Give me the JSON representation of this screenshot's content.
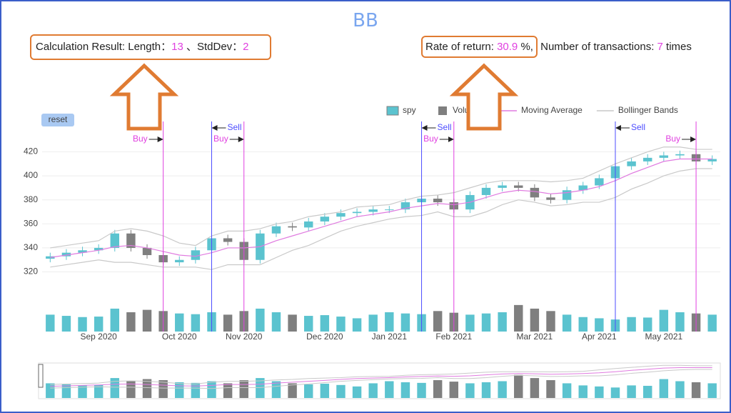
{
  "header": {
    "title": "BB",
    "calc": {
      "prefix": "Calculation Result: Length：",
      "length": 13,
      "sep": "、StdDev：",
      "stddev": 2
    },
    "rate": {
      "prefix": "Rate of return: ",
      "value": 30.9,
      "unit": "%,",
      "tx_prefix": "Number of transactions: ",
      "transactions": 7,
      "tx_unit": "times"
    }
  },
  "reset": "reset",
  "chart_data": {
    "type": "candlestick",
    "name": "spy",
    "up_color": "#5bc3cf",
    "down_color": "#7f7f7f",
    "categories": [
      null,
      null,
      null,
      "Sep 2020",
      null,
      null,
      null,
      null,
      "Oct 2020",
      null,
      null,
      null,
      "Nov 2020",
      null,
      null,
      null,
      null,
      "Dec 2020",
      null,
      null,
      null,
      "Jan 2021",
      null,
      null,
      null,
      "Feb 2021",
      null,
      null,
      null,
      null,
      "Mar 2021",
      null,
      null,
      null,
      "Apr 2021",
      null,
      null,
      null,
      "May 2021",
      null,
      null,
      null
    ],
    "open": [
      331,
      333,
      336,
      338,
      340,
      352,
      340,
      334,
      328,
      330,
      338,
      348,
      345,
      330,
      352,
      358,
      357,
      362,
      366,
      369,
      370,
      372,
      372,
      378,
      381,
      378,
      372,
      384,
      390,
      392,
      390,
      382,
      380,
      388,
      392,
      398,
      408,
      412,
      415,
      417,
      418,
      412
    ],
    "high": [
      336,
      339,
      341,
      343,
      355,
      355,
      343,
      337,
      333,
      341,
      351,
      351,
      348,
      355,
      361,
      361,
      365,
      369,
      372,
      373,
      375,
      375,
      381,
      384,
      384,
      381,
      387,
      393,
      395,
      395,
      393,
      385,
      391,
      395,
      401,
      411,
      415,
      418,
      420,
      421,
      421,
      417
    ],
    "low": [
      328,
      330,
      333,
      335,
      337,
      337,
      331,
      325,
      325,
      327,
      335,
      342,
      327,
      327,
      349,
      354,
      354,
      359,
      363,
      366,
      367,
      369,
      369,
      375,
      375,
      369,
      369,
      381,
      387,
      387,
      379,
      377,
      377,
      385,
      389,
      395,
      405,
      409,
      412,
      414,
      409,
      409
    ],
    "close": [
      333,
      336,
      338,
      340,
      352,
      340,
      334,
      328,
      330,
      338,
      348,
      345,
      330,
      352,
      358,
      357,
      362,
      366,
      369,
      370,
      372,
      372,
      378,
      381,
      378,
      372,
      384,
      390,
      392,
      390,
      382,
      380,
      388,
      392,
      398,
      408,
      412,
      415,
      417,
      418,
      412,
      414
    ],
    "volume": {
      "name": "Volume",
      "values": [
        70,
        65,
        60,
        62,
        95,
        80,
        90,
        85,
        75,
        72,
        80,
        70,
        85,
        95,
        80,
        70,
        65,
        68,
        62,
        55,
        70,
        80,
        75,
        72,
        85,
        78,
        70,
        75,
        80,
        110,
        95,
        85,
        70,
        60,
        55,
        50,
        60,
        58,
        90,
        80,
        75,
        70
      ],
      "ylim": [
        0,
        160
      ]
    },
    "lines": [
      {
        "name": "Moving Average",
        "color": "#e07be0",
        "values": [
          332,
          334,
          336,
          338,
          341,
          342,
          340,
          337,
          334,
          333,
          336,
          340,
          340,
          341,
          346,
          350,
          354,
          358,
          362,
          366,
          368,
          370,
          373,
          375,
          377,
          376,
          378,
          382,
          386,
          388,
          387,
          385,
          386,
          388,
          391,
          396,
          402,
          407,
          412,
          414,
          414,
          414
        ]
      },
      {
        "name": "Bollinger Bands",
        "color": "#c9c9c9",
        "upper": [
          340,
          342,
          344,
          346,
          354,
          356,
          354,
          350,
          344,
          342,
          350,
          354,
          354,
          356,
          360,
          362,
          366,
          368,
          370,
          374,
          375,
          376,
          380,
          383,
          384,
          386,
          390,
          394,
          396,
          396,
          396,
          395,
          396,
          398,
          404,
          410,
          415,
          420,
          424,
          424,
          422,
          422
        ],
        "lower": [
          324,
          326,
          328,
          330,
          328,
          328,
          326,
          324,
          324,
          324,
          322,
          326,
          326,
          326,
          332,
          338,
          342,
          348,
          354,
          358,
          361,
          364,
          366,
          367,
          370,
          366,
          366,
          370,
          376,
          380,
          378,
          375,
          376,
          378,
          378,
          382,
          389,
          394,
          400,
          404,
          406,
          406
        ]
      }
    ],
    "ylim": [
      312,
      428
    ],
    "yticks": [
      320,
      340,
      360,
      380,
      400,
      420
    ],
    "grid": true,
    "signals": [
      {
        "label": "Buy",
        "color": "#e040e0",
        "index": 7
      },
      {
        "label": "Sell",
        "color": "#4d4dff",
        "index": 10
      },
      {
        "label": "Buy",
        "color": "#e040e0",
        "index": 12
      },
      {
        "label": "Sell",
        "color": "#4d4dff",
        "index": 23
      },
      {
        "label": "Buy",
        "color": "#e040e0",
        "index": 25
      },
      {
        "label": "Sell",
        "color": "#4d4dff",
        "index": 35
      },
      {
        "label": "Buy",
        "color": "#e040e0",
        "index": 40
      }
    ]
  }
}
